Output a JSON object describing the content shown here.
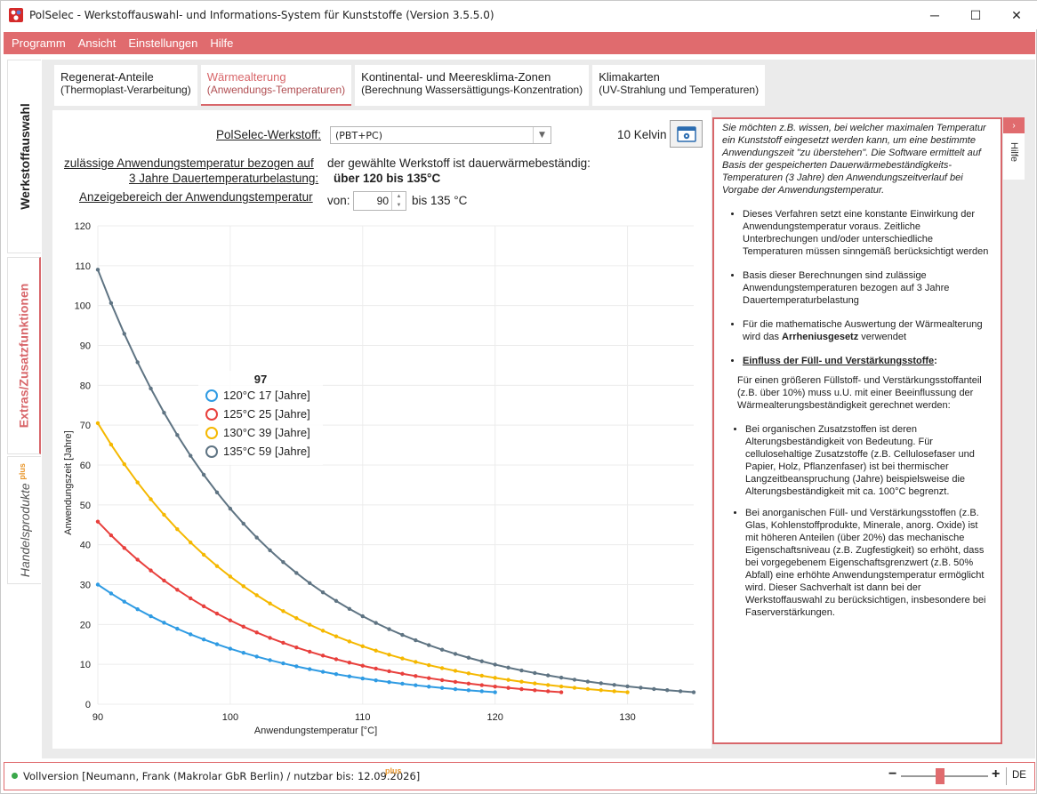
{
  "window": {
    "title": "PolSelec - Werkstoffauswahl- und Informations-System für Kunststoffe (Version 3.5.5.0)",
    "minimize": "─",
    "maximize": "☐",
    "close": "✕"
  },
  "menu": [
    "Programm",
    "Ansicht",
    "Einstellungen",
    "Hilfe"
  ],
  "sidebar": {
    "items": [
      {
        "label": "Werkstoffauswahl"
      },
      {
        "label": "Extras/Zusatzfunktionen"
      },
      {
        "label": "Handelsprodukte",
        "badge": "plus"
      }
    ]
  },
  "tabs": [
    {
      "line1": "Regenerat-Anteile",
      "line2": "(Thermoplast-Verarbeitung)"
    },
    {
      "line1": "Wärmealterung",
      "line2": "(Anwendungs-Temperaturen)",
      "active": true
    },
    {
      "line1": "Kontinental- und Meeresklima-Zonen",
      "line2": "(Berechnung Wassersättigungs-Konzentration)"
    },
    {
      "line1": "Klimakarten",
      "line2": "(UV-Strahlung und Temperaturen)"
    }
  ],
  "form": {
    "werkstoff_label": "PolSelec-Werkstoff:",
    "werkstoff_value": "(PBT+PC)",
    "kelvin_label": "10 Kelvin",
    "temp_label_1": "zulässige Anwendungstemperatur bezogen auf",
    "temp_label_2": "3 Jahre Dauertemperaturbelastung:",
    "info_text": "der gewählte Werkstoff ist dauerwärmebeständig:",
    "info_value": "über 120 bis 135°C",
    "range_label": "Anzeigebereich der Anwendungstemperatur",
    "from_label": "von:",
    "from_value": "90",
    "to_label": "bis 135 °C"
  },
  "chart_data": {
    "type": "line",
    "xlabel": "Anwendungstemperatur [°C]",
    "ylabel": "Anwendungszeit [Jahre]",
    "xlim": [
      90,
      135
    ],
    "ylim": [
      0,
      120
    ],
    "xticks": [
      90,
      100,
      110,
      120,
      130
    ],
    "yticks": [
      0,
      10,
      20,
      30,
      40,
      50,
      60,
      70,
      80,
      90,
      100,
      110,
      120
    ],
    "grid": true,
    "tooltip": {
      "x_label": "97",
      "entries": [
        {
          "label": "120°C",
          "value": "17",
          "unit": "[Jahre]"
        },
        {
          "label": "125°C",
          "value": "25",
          "unit": "[Jahre]"
        },
        {
          "label": "130°C",
          "value": "39",
          "unit": "[Jahre]"
        },
        {
          "label": "135°C",
          "value": "59",
          "unit": "[Jahre]"
        }
      ]
    },
    "series": [
      {
        "name": "120°C",
        "color": "#2f9be3",
        "x_start": 90,
        "x_end": 120,
        "y_start": 30,
        "y_end": 3
      },
      {
        "name": "125°C",
        "color": "#e8403d",
        "x_start": 90,
        "x_end": 125,
        "y_start": 45.8,
        "y_end": 3
      },
      {
        "name": "130°C",
        "color": "#f5b800",
        "x_start": 90,
        "x_end": 130,
        "y_start": 70.5,
        "y_end": 3
      },
      {
        "name": "135°C",
        "color": "#5f7483",
        "x_start": 90,
        "x_end": 135,
        "y_start": 109,
        "y_end": 3
      }
    ]
  },
  "help": {
    "tab_label": "Hilfe",
    "intro": "Sie möchten z.B. wissen, bei welcher maximalen Temperatur ein Kunststoff eingesetzt werden kann, um eine bestimmte Anwendungszeit \"zu überstehen\". Die Software ermittelt auf Basis der gespeicherten Dauerwärmebeständigkeits-Temperaturen (3 Jahre) den Anwendungszeitverlauf bei Vorgabe der Anwendungstemperatur.",
    "bullet1": "Dieses Verfahren setzt eine konstante Einwirkung der Anwendungstemperatur voraus. Zeitliche Unterbrechungen und/oder unterschiedliche Temperaturen müssen sinngemäß berücksichtigt werden",
    "bullet2": "Basis dieser Berechnungen sind zulässige Anwendungstemperaturen bezogen auf 3 Jahre Dauertemperaturbelastung",
    "bullet3_pre": "Für die mathematische Auswertung der Wärmealterung wird das ",
    "bullet3_bold": "Arrheniusgesetz",
    "bullet3_post": " verwendet",
    "bullet4_heading": "Einfluss der Füll- und Verstärkungsstoffe",
    "bullet4_colon": ":",
    "para": "Für einen größeren Füllstoff- und Verstärkungsstoffanteil (z.B. über 10%) muss u.U. mit einer Beeinflussung der Wärmealterungsbeständigkeit gerechnet werden:",
    "sub1": "Bei organischen Zusatzstoffen ist deren Alterungsbeständigkeit von Bedeutung. Für cellulosehaltige Zusatzstoffe (z.B. Cellulosefaser und Papier, Holz, Pflanzenfaser) ist bei thermischer Langzeitbeanspruchung (Jahre) beispielsweise die Alterungsbeständigkeit mit ca. 100°C begrenzt.",
    "sub2": "Bei anorganischen Füll- und Verstärkungsstoffen (z.B. Glas, Kohlenstoffprodukte, Minerale, anorg. Oxide) ist mit höheren Anteilen (über 20%) das mechanische Eigenschaftsniveau (z.B. Zugfestigkeit) so erhöht, dass bei vorgegebenem Eigenschaftsgrenzwert (z.B. 50% Abfall) eine erhöhte Anwendungstemperatur ermöglicht wird. Dieser Sachverhalt ist dann bei der Werkstoffauswahl zu berücksichtigen, insbesondere bei Faserverstärkungen."
  },
  "status": {
    "text": "Vollversion [Neumann, Frank (Makrolar GbR Berlin) / nutzbar bis: 12.09.2026]",
    "badge": "plus",
    "zoom_minus": "−",
    "zoom_plus": "+",
    "zoom_level": 0.45,
    "lang": "DE"
  }
}
